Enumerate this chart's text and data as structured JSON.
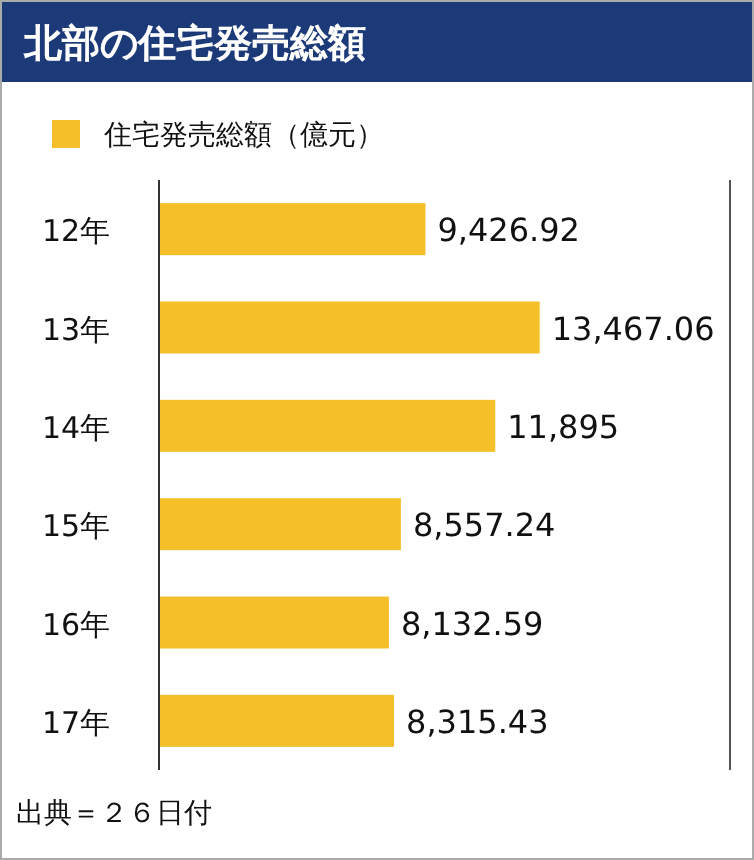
{
  "chart_data": {
    "type": "bar",
    "orientation": "horizontal",
    "title": "北部の住宅発売総額",
    "categories": [
      "12年",
      "13年",
      "14年",
      "15年",
      "16年",
      "17年"
    ],
    "series": [
      {
        "name": "住宅発売総額（億元）",
        "color": "#f5bf2a",
        "values": [
          9426.92,
          13467.06,
          11895,
          8557.24,
          8132.59,
          8315.43
        ],
        "value_labels": [
          "9,426.92",
          "13,467.06",
          "11,895",
          "8,557.24",
          "8,132.59",
          "8,315.43"
        ]
      }
    ],
    "legend": "top left",
    "annotations": [
      "出典＝２６日付"
    ]
  }
}
